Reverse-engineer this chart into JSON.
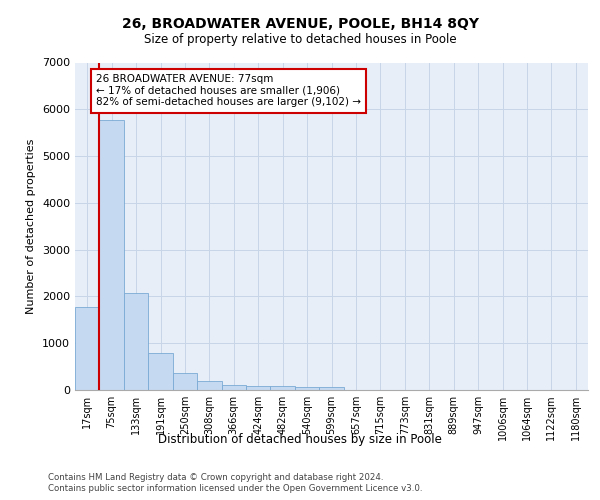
{
  "title1": "26, BROADWATER AVENUE, POOLE, BH14 8QY",
  "title2": "Size of property relative to detached houses in Poole",
  "xlabel": "Distribution of detached houses by size in Poole",
  "ylabel": "Number of detached properties",
  "bin_labels": [
    "17sqm",
    "75sqm",
    "133sqm",
    "191sqm",
    "250sqm",
    "308sqm",
    "366sqm",
    "424sqm",
    "482sqm",
    "540sqm",
    "599sqm",
    "657sqm",
    "715sqm",
    "773sqm",
    "831sqm",
    "889sqm",
    "947sqm",
    "1006sqm",
    "1064sqm",
    "1122sqm",
    "1180sqm"
  ],
  "bar_heights": [
    1780,
    5780,
    2080,
    800,
    360,
    200,
    110,
    90,
    80,
    65,
    65,
    0,
    0,
    0,
    0,
    0,
    0,
    0,
    0,
    0,
    0
  ],
  "bar_color": "#c5d9f0",
  "bar_edge_color": "#7aaad4",
  "grid_color": "#c8d5e8",
  "background_color": "#e8eef8",
  "vline_color": "#cc0000",
  "annotation_text": "26 BROADWATER AVENUE: 77sqm\n← 17% of detached houses are smaller (1,906)\n82% of semi-detached houses are larger (9,102) →",
  "annotation_box_color": "#cc0000",
  "ylim": [
    0,
    7000
  ],
  "yticks": [
    0,
    1000,
    2000,
    3000,
    4000,
    5000,
    6000,
    7000
  ],
  "footnote1": "Contains HM Land Registry data © Crown copyright and database right 2024.",
  "footnote2": "Contains public sector information licensed under the Open Government Licence v3.0."
}
